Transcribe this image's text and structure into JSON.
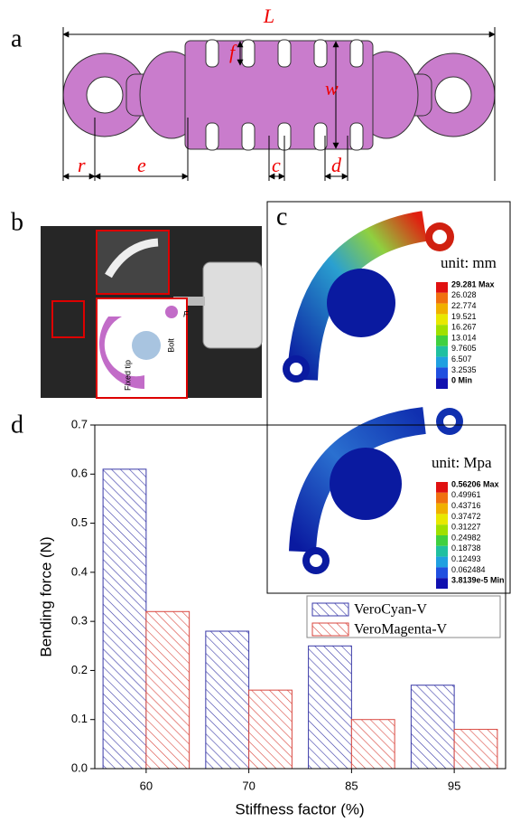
{
  "panel_a": {
    "label": "a",
    "dims": {
      "L": "L",
      "f": "f",
      "w": "w",
      "r": "r",
      "e": "e",
      "c": "c",
      "d": "d"
    }
  },
  "panel_b": {
    "label": "b",
    "force": "F",
    "bolt": "Bolt",
    "fixed_tip": "Fixed tip"
  },
  "panel_c": {
    "label": "c",
    "top": {
      "unit": "unit: mm",
      "scale": [
        "29.281 Max",
        "26.028",
        "22.774",
        "19.521",
        "16.267",
        "13.014",
        "9.7605",
        "6.507",
        "3.2535",
        "0 Min"
      ]
    },
    "bottom": {
      "unit": "unit: Mpa",
      "scale": [
        "0.56206 Max",
        "0.49961",
        "0.43716",
        "0.37472",
        "0.31227",
        "0.24982",
        "0.18738",
        "0.12493",
        "0.062484",
        "3.8139e-5 Min"
      ]
    }
  },
  "panel_d": {
    "label": "d"
  },
  "chart_data": {
    "type": "bar",
    "x_label": "Stiffness factor (%)",
    "y_label": "Bending force (N)",
    "categories": [
      "60",
      "70",
      "85",
      "95"
    ],
    "series": [
      {
        "name": "VeroCyan-V",
        "color": "#3a3aa8",
        "values": [
          0.61,
          0.28,
          0.25,
          0.17
        ]
      },
      {
        "name": "VeroMagenta-V",
        "color": "#d9473f",
        "values": [
          0.32,
          0.16,
          0.1,
          0.08
        ]
      }
    ],
    "ylim": [
      0,
      0.7
    ],
    "yticks": [
      {
        "value": 0,
        "label": "0.0"
      },
      0.1,
      0.2,
      0.3,
      0.4,
      0.5,
      0.6,
      0.7
    ],
    "hatch": true
  }
}
